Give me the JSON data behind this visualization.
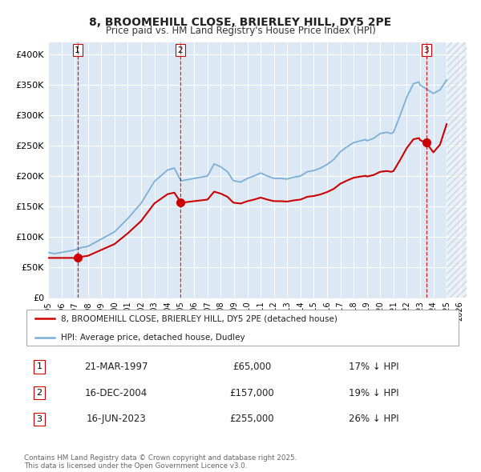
{
  "title": "8, BROOMEHILL CLOSE, BRIERLEY HILL, DY5 2PE",
  "subtitle": "Price paid vs. HM Land Registry's House Price Index (HPI)",
  "background_color": "#ffffff",
  "plot_bg_color": "#dce9f5",
  "hpi_color": "#7bafd4",
  "price_color": "#cc0000",
  "transactions": [
    {
      "num": 1,
      "date_str": "21-MAR-1997",
      "year": 1997.21,
      "price": 65000,
      "hpi_pct": "17% ↓ HPI"
    },
    {
      "num": 2,
      "date_str": "16-DEC-2004",
      "year": 2004.96,
      "price": 157000,
      "hpi_pct": "19% ↓ HPI"
    },
    {
      "num": 3,
      "date_str": "16-JUN-2023",
      "year": 2023.46,
      "price": 255000,
      "hpi_pct": "26% ↓ HPI"
    }
  ],
  "ylim": [
    0,
    420000
  ],
  "xlim_min": 1995,
  "xlim_max": 2026.5,
  "yticks": [
    0,
    50000,
    100000,
    150000,
    200000,
    250000,
    300000,
    350000,
    400000
  ],
  "ytick_labels": [
    "£0",
    "£50K",
    "£100K",
    "£150K",
    "£200K",
    "£250K",
    "£300K",
    "£350K",
    "£400K"
  ],
  "xticks": [
    1995,
    1996,
    1997,
    1998,
    1999,
    2000,
    2001,
    2002,
    2003,
    2004,
    2005,
    2006,
    2007,
    2008,
    2009,
    2010,
    2011,
    2012,
    2013,
    2014,
    2015,
    2016,
    2017,
    2018,
    2019,
    2020,
    2021,
    2022,
    2023,
    2024,
    2025,
    2026
  ],
  "legend_label_price": "8, BROOMEHILL CLOSE, BRIERLEY HILL, DY5 2PE (detached house)",
  "legend_label_hpi": "HPI: Average price, detached house, Dudley",
  "footnote": "Contains HM Land Registry data © Crown copyright and database right 2025.\nThis data is licensed under the Open Government Licence v3.0.",
  "forecast_start_x": 2025.0
}
